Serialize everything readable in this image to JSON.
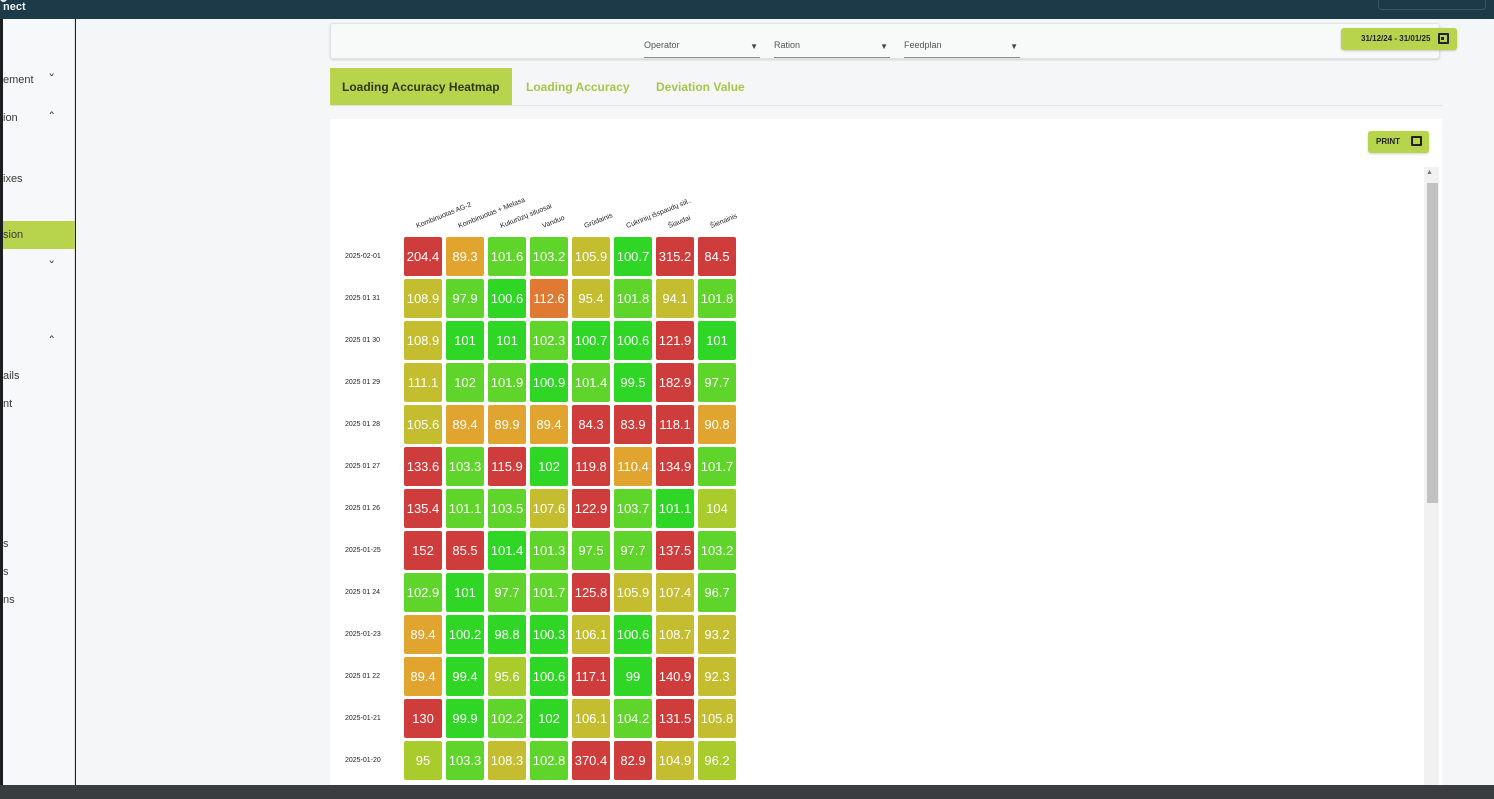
{
  "app": {
    "brand": "nect"
  },
  "sidebar": {
    "items": [
      {
        "label": "ement",
        "chevron": "˅"
      },
      {
        "label": "ion",
        "chevron": "˄"
      },
      {
        "label": "ixes"
      },
      {
        "label": "sion",
        "active": true
      },
      {
        "label": "",
        "chevron": "˅"
      },
      {
        "label": "",
        "chevron": "˄"
      },
      {
        "label": "ails"
      },
      {
        "label": "nt"
      },
      {
        "label": "s"
      },
      {
        "label": "s"
      },
      {
        "label": "ns"
      }
    ]
  },
  "filters": {
    "operator": "Operator",
    "ration": "Ration",
    "feedplan": "Feedplan",
    "caret": "▼",
    "date_range": "31/12/24 - 31/01/25"
  },
  "tabs": [
    "Loading Accuracy Heatmap",
    "Loading Accuracy",
    "Deviation Value"
  ],
  "panel": {
    "print_label": "PRINT"
  },
  "colors": {
    "red": "#cf3c3c",
    "orange": "#e07a33",
    "amber": "#e1a52f",
    "olive": "#c4bd2f",
    "yellowgreen": "#a9cb2c",
    "green": "#5fd42a",
    "brightgreen": "#2fd626",
    "accent": "#b8d44d"
  },
  "chart_data": {
    "type": "heatmap",
    "columns": [
      "Kombinuotas AG-2",
      "Kombinuotas + Melasa",
      "Kukurūzų siluosai",
      "Vanduo",
      "Grūdainis",
      "Cukrinių išspaudų siil..",
      "Šiaudai",
      "Šienainis"
    ],
    "rows": [
      "2025-02-01",
      "2025 01 31",
      "2025 01 30",
      "2025 01 29",
      "2025 01 28",
      "2025 01 27",
      "2025 01 26",
      "2025-01-25",
      "2025 01 24",
      "2025-01-23",
      "2025 01 22",
      "2025-01-21",
      "2025-01-20"
    ],
    "values": [
      [
        "204.4",
        "89.3",
        "101.6",
        "103.2",
        "105.9",
        "100.7",
        "315.2",
        "84.5"
      ],
      [
        "108.9",
        "97.9",
        "100.6",
        "112.6",
        "95.4",
        "101.8",
        "94.1",
        "101.8"
      ],
      [
        "108.9",
        "101",
        "101",
        "102.3",
        "100.7",
        "100.6",
        "121.9",
        "101"
      ],
      [
        "111.1",
        "102",
        "101.9",
        "100.9",
        "101.4",
        "99.5",
        "182.9",
        "97.7"
      ],
      [
        "105.6",
        "89.4",
        "89.9",
        "89.4",
        "84.3",
        "83.9",
        "118.1",
        "90.8"
      ],
      [
        "133.6",
        "103.3",
        "115.9",
        "102",
        "119.8",
        "110.4",
        "134.9",
        "101.7"
      ],
      [
        "135.4",
        "101.1",
        "103.5",
        "107.6",
        "122.9",
        "103.7",
        "101.1",
        "104"
      ],
      [
        "152",
        "85.5",
        "101.4",
        "101.3",
        "97.5",
        "97.7",
        "137.5",
        "103.2"
      ],
      [
        "102.9",
        "101",
        "97.7",
        "101.7",
        "125.8",
        "105.9",
        "107.4",
        "96.7"
      ],
      [
        "89.4",
        "100.2",
        "98.8",
        "100.3",
        "106.1",
        "100.6",
        "108.7",
        "93.2"
      ],
      [
        "89.4",
        "99.4",
        "95.6",
        "100.6",
        "117.1",
        "99",
        "140.9",
        "92.3"
      ],
      [
        "130",
        "99.9",
        "102.2",
        "102",
        "106.1",
        "104.2",
        "131.5",
        "105.8"
      ],
      [
        "95",
        "103.3",
        "108.3",
        "102.8",
        "370.4",
        "82.9",
        "104.9",
        "96.2"
      ]
    ],
    "cell_colors": [
      [
        "red",
        "amber",
        "green",
        "green",
        "olive",
        "brightgreen",
        "red",
        "red"
      ],
      [
        "olive",
        "green",
        "brightgreen",
        "orange",
        "olive",
        "green",
        "olive",
        "green"
      ],
      [
        "olive",
        "brightgreen",
        "brightgreen",
        "green",
        "brightgreen",
        "brightgreen",
        "red",
        "brightgreen"
      ],
      [
        "olive",
        "green",
        "green",
        "brightgreen",
        "green",
        "brightgreen",
        "red",
        "green"
      ],
      [
        "olive",
        "amber",
        "amber",
        "amber",
        "red",
        "red",
        "red",
        "amber"
      ],
      [
        "red",
        "green",
        "red",
        "brightgreen",
        "red",
        "amber",
        "red",
        "green"
      ],
      [
        "red",
        "green",
        "green",
        "olive",
        "red",
        "green",
        "brightgreen",
        "yellowgreen"
      ],
      [
        "red",
        "red",
        "brightgreen",
        "green",
        "green",
        "green",
        "red",
        "green"
      ],
      [
        "green",
        "brightgreen",
        "green",
        "green",
        "red",
        "olive",
        "olive",
        "green"
      ],
      [
        "amber",
        "brightgreen",
        "brightgreen",
        "brightgreen",
        "olive",
        "brightgreen",
        "olive",
        "olive"
      ],
      [
        "amber",
        "brightgreen",
        "yellowgreen",
        "brightgreen",
        "red",
        "brightgreen",
        "red",
        "olive"
      ],
      [
        "red",
        "brightgreen",
        "green",
        "brightgreen",
        "olive",
        "green",
        "red",
        "olive"
      ],
      [
        "yellowgreen",
        "green",
        "olive",
        "green",
        "red",
        "red",
        "olive",
        "yellowgreen"
      ]
    ]
  }
}
